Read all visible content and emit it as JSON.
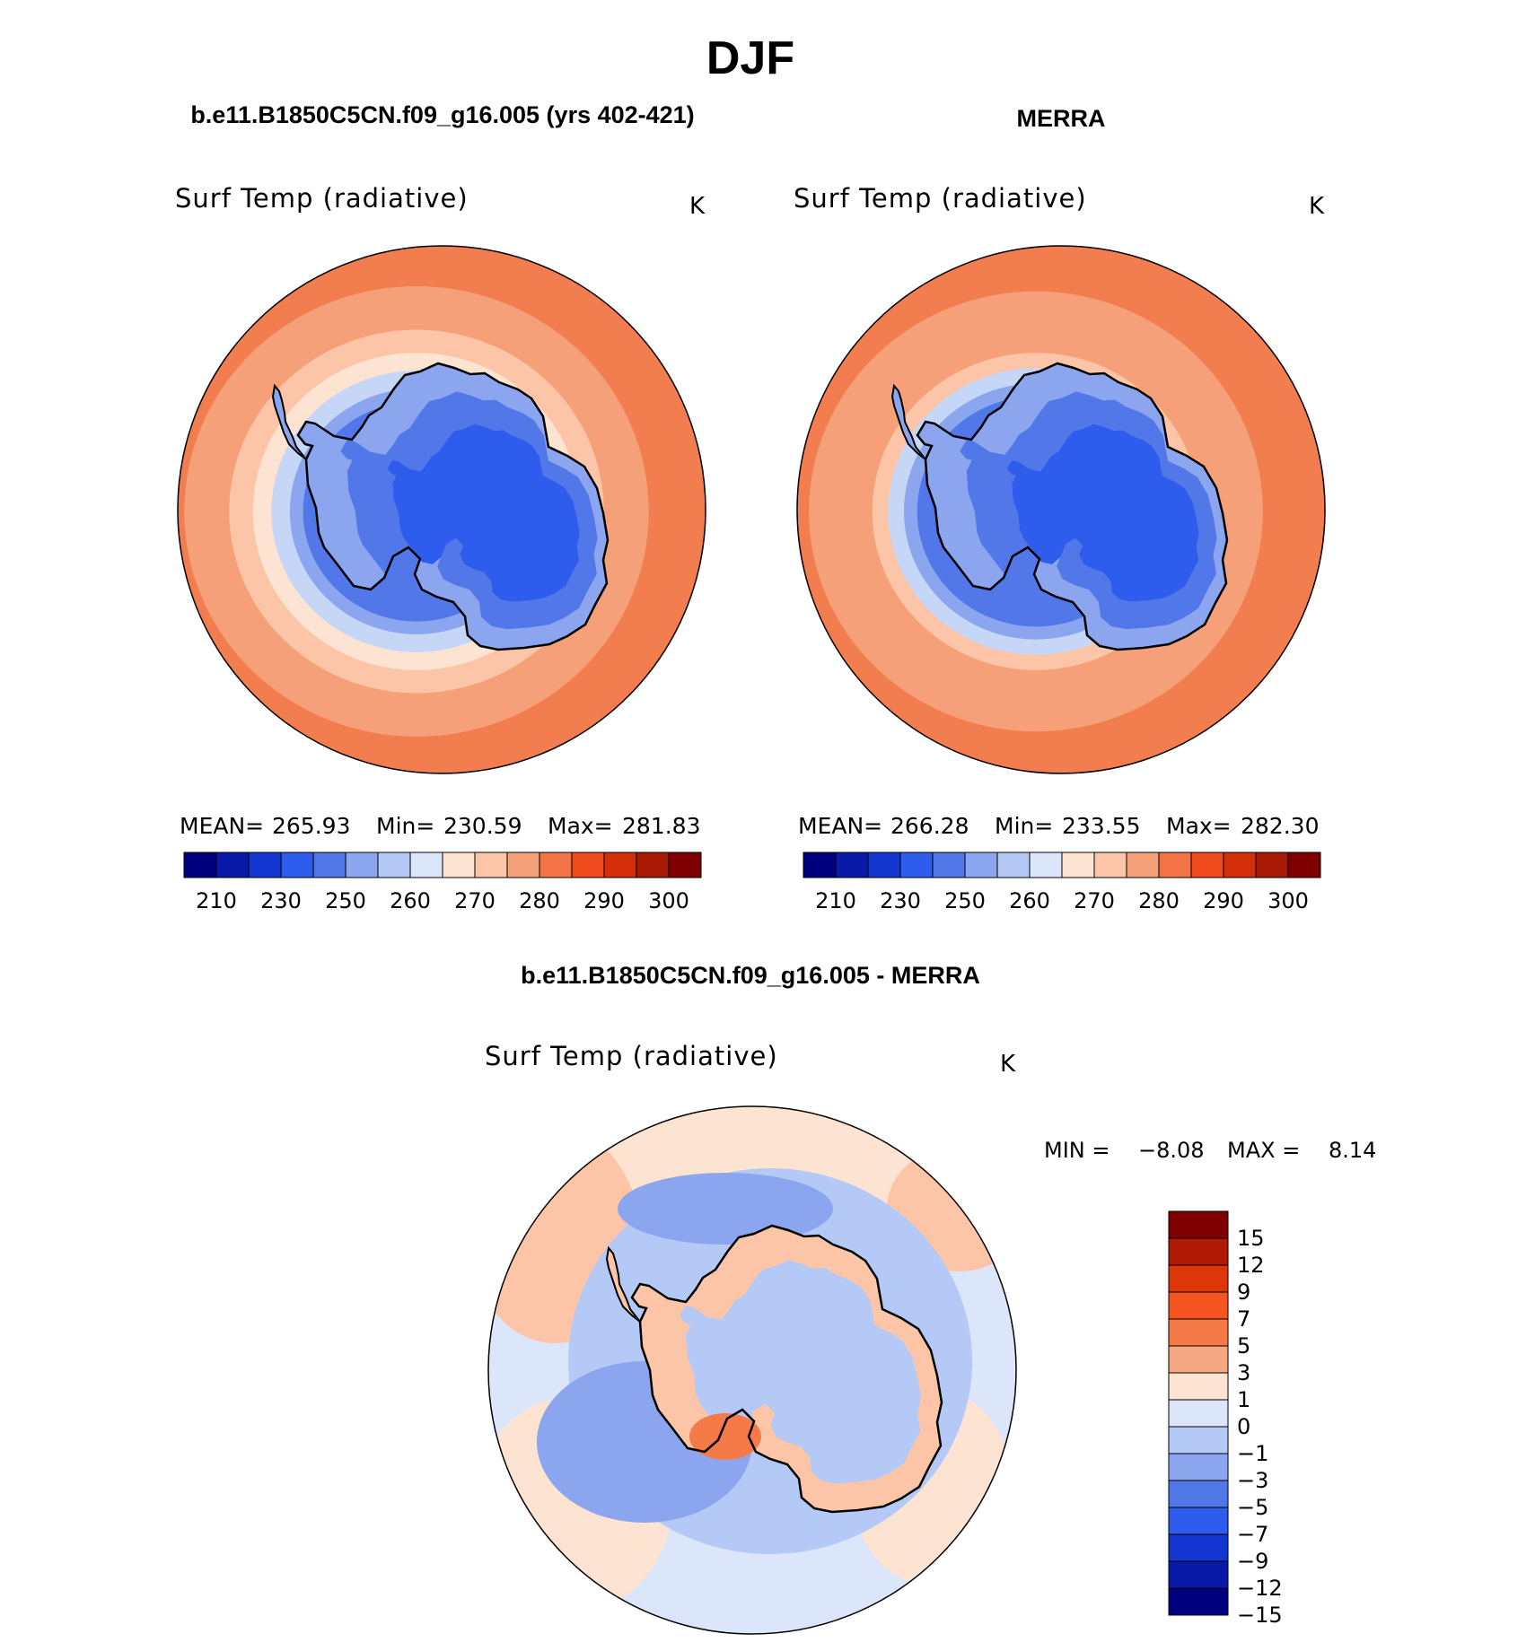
{
  "figure": {
    "title": "DJF",
    "units": "K",
    "variable": "Surf Temp (radiative)"
  },
  "panels": [
    {
      "id": "model",
      "title": "b.e11.B1850C5CN.f09_g16.005 (yrs 402-421)",
      "variable": "Surf Temp (radiative)",
      "units": "K",
      "stats_text": {
        "mean_label": "MEAN=",
        "mean": "265.93",
        "min_label": "Min=",
        "min": "230.59",
        "max_label": "Max=",
        "max": "281.83"
      },
      "bands_norm": [
        0.88,
        0.71,
        0.62,
        0.55,
        0.48,
        0.43
      ],
      "bands_colors": [
        "#f5a078",
        "#fcc5a8",
        "#fde4d2",
        "#c5d6f7",
        "#8ba6ee",
        "#5277e8"
      ],
      "core_color": "#2e5ded"
    },
    {
      "id": "obs",
      "title": "MERRA",
      "variable": "Surf Temp (radiative)",
      "units": "K",
      "stats_text": {
        "mean_label": "MEAN=",
        "mean": "266.28",
        "min_label": "Min=",
        "min": "233.55",
        "max_label": "Max=",
        "max": "282.30"
      },
      "bands_norm": [
        0.86,
        0.62,
        0.56,
        0.5,
        0.45
      ],
      "bands_colors": [
        "#f5a078",
        "#fcc5a8",
        "#c5d6f7",
        "#8ba6ee",
        "#5277e8"
      ],
      "core_color": "#2e5ded"
    }
  ],
  "abs_colorbar": {
    "colors": [
      "#00007f",
      "#0a1aa8",
      "#1436d0",
      "#2e5ded",
      "#5277e8",
      "#8ba6ee",
      "#b5c9f7",
      "#dbe6fb",
      "#fde4d2",
      "#fcc5a8",
      "#f5a078",
      "#f27446",
      "#ee4a1c",
      "#d42f0a",
      "#a81a04",
      "#7f0000"
    ],
    "labels": [
      "210",
      "230",
      "250",
      "260",
      "270",
      "280",
      "290",
      "300"
    ]
  },
  "diff_panel": {
    "title": "b.e11.B1850C5CN.f09_g16.005 - MERRA",
    "variable": "Surf Temp (radiative)",
    "units": "K",
    "min_label": "MIN =",
    "min": "−8.08",
    "max_label": "MAX =",
    "max": "8.14",
    "colorbar": {
      "colors_top_to_bottom": [
        "#7f0000",
        "#b01a05",
        "#dd3608",
        "#f55520",
        "#f57a48",
        "#f5a882",
        "#fde4d2",
        "#dbe6fb",
        "#b5c9f7",
        "#8ba6ee",
        "#5277e8",
        "#2e5ded",
        "#1436d0",
        "#0a1aa8",
        "#00007f"
      ],
      "labels_top_to_bottom": [
        "15",
        "12",
        "9",
        "7",
        "5",
        "3",
        "1",
        "0",
        "−1",
        "−3",
        "−5",
        "−7",
        "−9",
        "−12",
        "−15"
      ]
    }
  }
}
